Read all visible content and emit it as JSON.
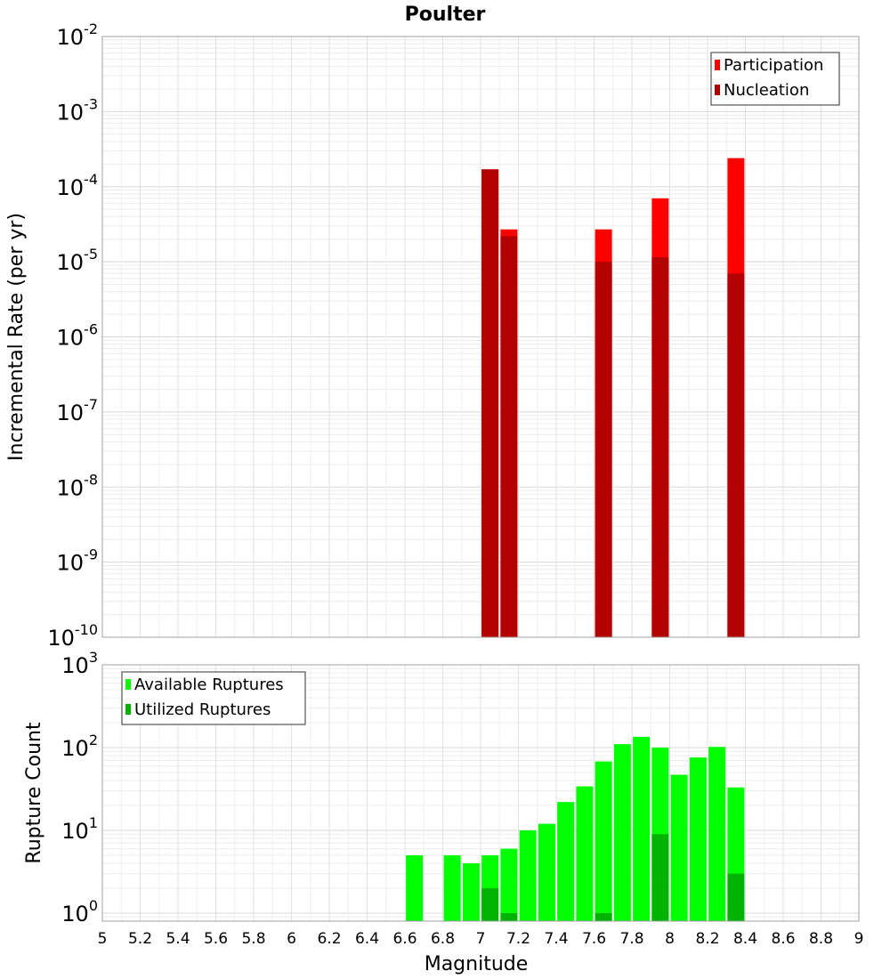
{
  "chart_data": [
    {
      "type": "bar",
      "title": "Poulter",
      "xlabel": "",
      "ylabel": "Incremental Rate (per yr)",
      "yscale": "log",
      "xlim": [
        5,
        9
      ],
      "ylim": [
        1e-10,
        0.01
      ],
      "ytick_exponents": [
        -10,
        -9,
        -8,
        -7,
        -6,
        -5,
        -4,
        -3,
        -2
      ],
      "legend_position": "top-right",
      "grid": true,
      "series": [
        {
          "name": "Participation",
          "color": "#ff0000",
          "points": [
            {
              "x": 7.05,
              "y": 0.00017
            },
            {
              "x": 7.15,
              "y": 2.7e-05
            },
            {
              "x": 7.65,
              "y": 2.7e-05
            },
            {
              "x": 7.95,
              "y": 7e-05
            },
            {
              "x": 8.35,
              "y": 0.00024
            }
          ]
        },
        {
          "name": "Nucleation",
          "color": "#b30000",
          "points": [
            {
              "x": 7.05,
              "y": 0.00017
            },
            {
              "x": 7.15,
              "y": 2.2e-05
            },
            {
              "x": 7.65,
              "y": 1e-05
            },
            {
              "x": 7.95,
              "y": 1.15e-05
            },
            {
              "x": 8.35,
              "y": 7e-06
            }
          ]
        }
      ]
    },
    {
      "type": "bar",
      "title": "",
      "xlabel": "Magnitude",
      "ylabel": "Rupture Count",
      "yscale": "log",
      "xlim": [
        5,
        9
      ],
      "ylim": [
        0.8,
        1000
      ],
      "ytick_exponents": [
        0,
        1,
        2,
        3
      ],
      "xticks": [
        "5",
        "5.2",
        "5.4",
        "5.6",
        "5.8",
        "6",
        "6.2",
        "6.4",
        "6.6",
        "6.8",
        "7",
        "7.2",
        "7.4",
        "7.6",
        "7.8",
        "8",
        "8.2",
        "8.4",
        "8.6",
        "8.8",
        "9"
      ],
      "legend_position": "top-left",
      "grid": true,
      "series": [
        {
          "name": "Available Ruptures",
          "color": "#00ff00",
          "points": [
            {
              "x": 6.65,
              "y": 5
            },
            {
              "x": 6.85,
              "y": 5
            },
            {
              "x": 6.95,
              "y": 4
            },
            {
              "x": 7.05,
              "y": 5
            },
            {
              "x": 7.15,
              "y": 6
            },
            {
              "x": 7.25,
              "y": 10
            },
            {
              "x": 7.35,
              "y": 12
            },
            {
              "x": 7.45,
              "y": 22
            },
            {
              "x": 7.55,
              "y": 34
            },
            {
              "x": 7.65,
              "y": 68
            },
            {
              "x": 7.75,
              "y": 110
            },
            {
              "x": 7.85,
              "y": 135
            },
            {
              "x": 7.95,
              "y": 100
            },
            {
              "x": 8.05,
              "y": 47
            },
            {
              "x": 8.15,
              "y": 76
            },
            {
              "x": 8.25,
              "y": 102
            },
            {
              "x": 8.35,
              "y": 33
            }
          ]
        },
        {
          "name": "Utilized Ruptures",
          "color": "#00b300",
          "points": [
            {
              "x": 7.05,
              "y": 2
            },
            {
              "x": 7.15,
              "y": 1
            },
            {
              "x": 7.65,
              "y": 1
            },
            {
              "x": 7.95,
              "y": 9
            },
            {
              "x": 8.35,
              "y": 3
            }
          ]
        }
      ]
    }
  ]
}
